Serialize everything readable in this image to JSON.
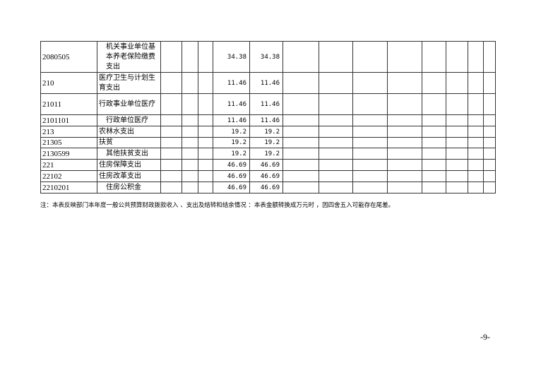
{
  "rows": [
    {
      "code": "2080505",
      "name": "机关事业单位基本养老保险缴费支出",
      "indent": true,
      "v1": "34.38",
      "v2": "34.38"
    },
    {
      "code": "210",
      "name": "医疗卫生与计划生育支出",
      "indent": false,
      "v1": "11.46",
      "v2": "11.46"
    },
    {
      "code": "21011",
      "name": "行政事业单位医疗",
      "indent": false,
      "v1": "11.46",
      "v2": "11.46"
    },
    {
      "code": "2101101",
      "name": "行政单位医疗",
      "indent": true,
      "v1": "11.46",
      "v2": "11.46"
    },
    {
      "code": "213",
      "name": "农林水支出",
      "indent": false,
      "v1": "19.2",
      "v2": "19.2"
    },
    {
      "code": "21305",
      "name": "扶贫",
      "indent": false,
      "v1": "19.2",
      "v2": "19.2"
    },
    {
      "code": "2130599",
      "name": "其他扶贫支出",
      "indent": true,
      "v1": "19.2",
      "v2": "19.2"
    },
    {
      "code": "221",
      "name": "住房保障支出",
      "indent": false,
      "v1": "46.69",
      "v2": "46.69"
    },
    {
      "code": "22102",
      "name": "住房改革支出",
      "indent": false,
      "v1": "46.69",
      "v2": "46.69"
    },
    {
      "code": "2210201",
      "name": "住房公积金",
      "indent": true,
      "v1": "46.69",
      "v2": "46.69"
    }
  ],
  "note": "注：本表反映部门本年度一般公共预算财政拨款收入 、支出及结转和结余情况 ：本表金额转换成万元时 ，因四舍五入可能存在尾差。",
  "page_number": "-9-"
}
